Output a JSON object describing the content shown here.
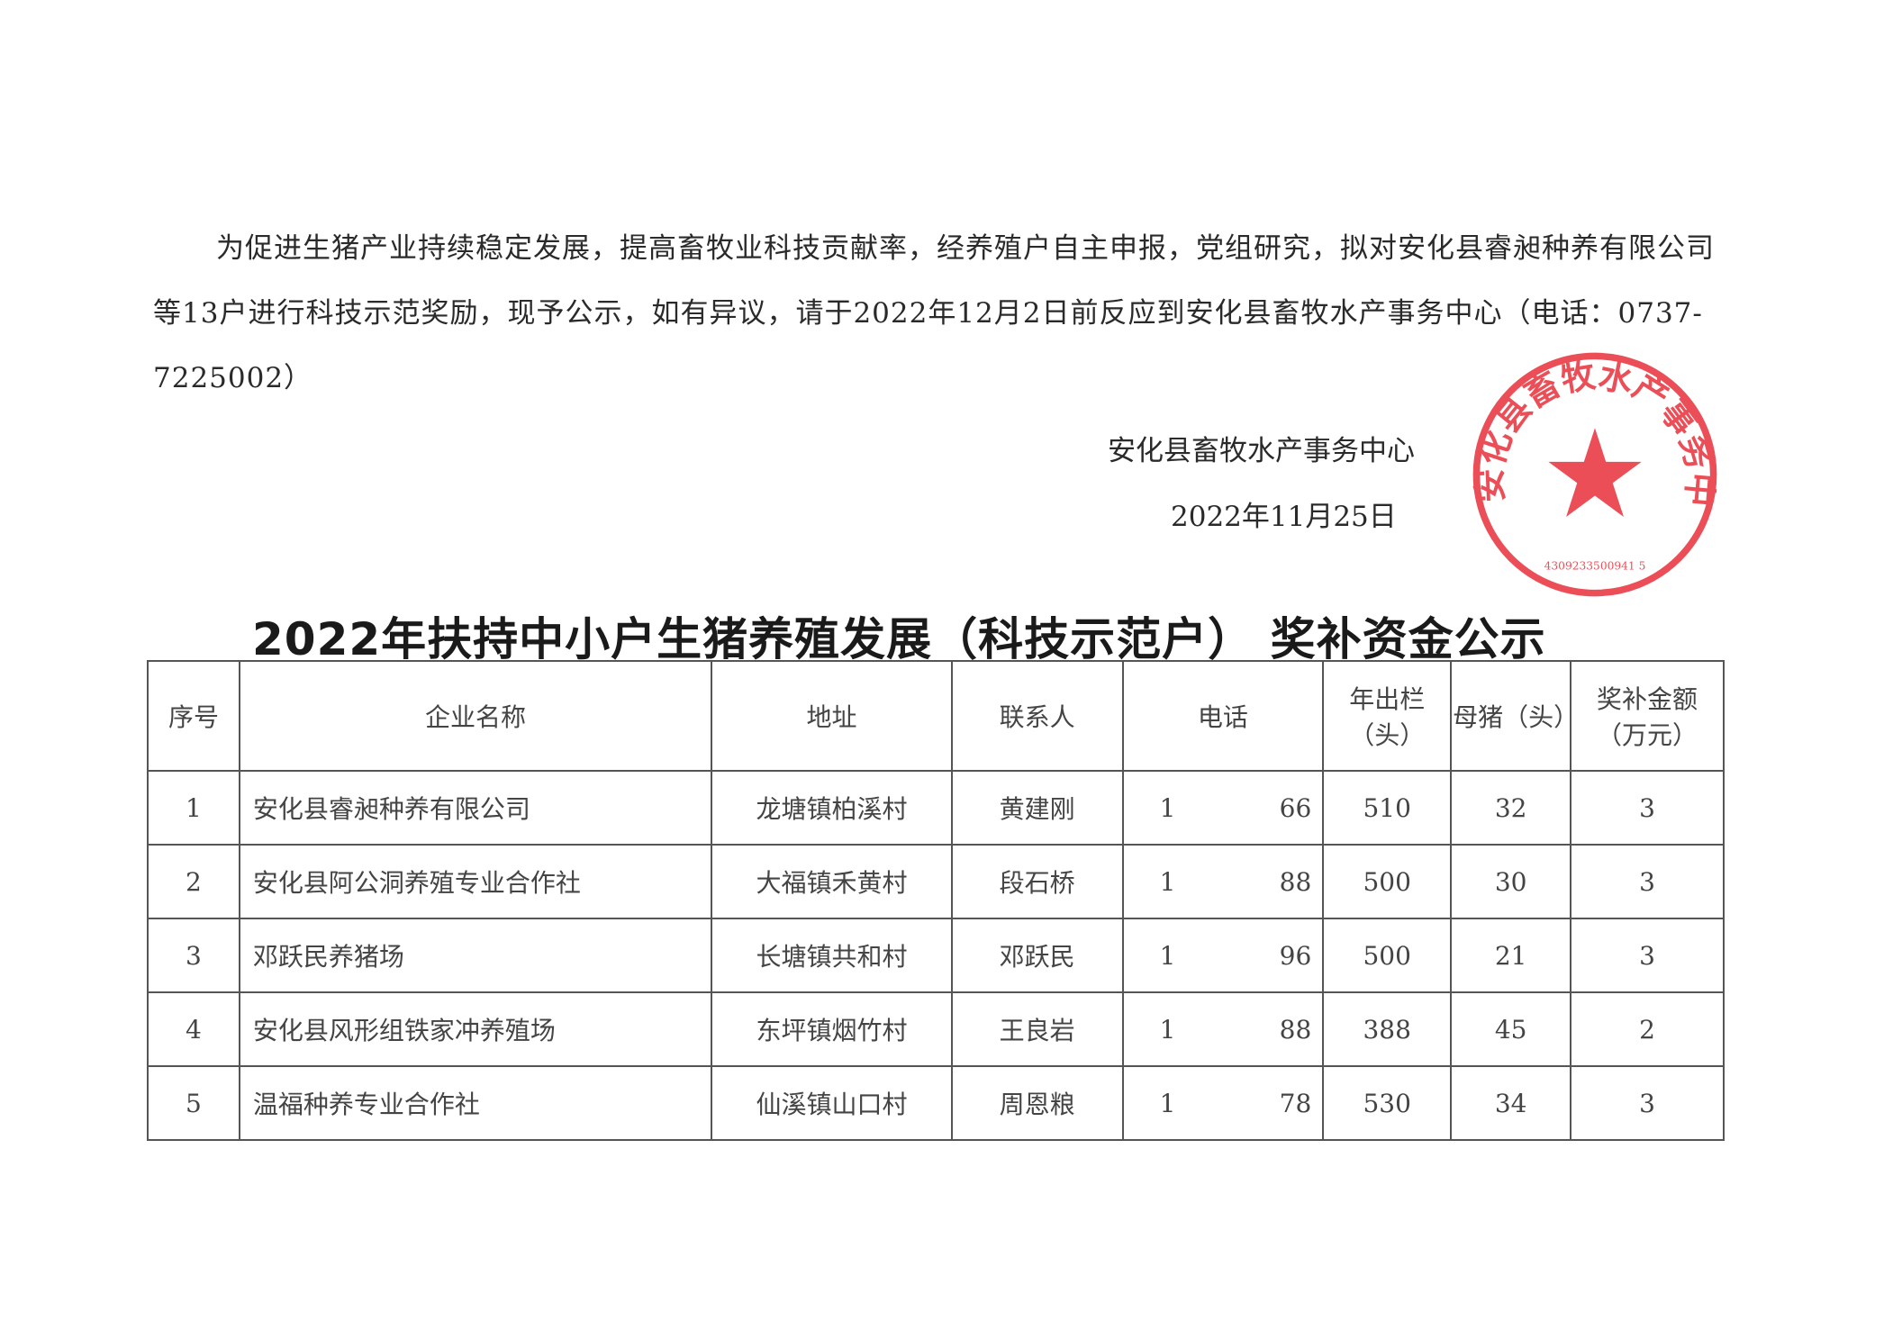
{
  "notice": {
    "paragraph": "为促进生猪产业持续稳定发展，提高畜牧业科技贡献率，经养殖户自主申报，党组研究，拟对安化县睿昶种养有限公司等13户进行科技示范奖励，现予公示，如有异议，请于2022年12月2日前反应到安化县畜牧水产事务中心（电话：0737-7225002）",
    "issuer": "安化县畜牧水产事务中心",
    "date": "2022年11月25日"
  },
  "seal": {
    "text": "安化县畜牧水产事务中心",
    "code": "4309233500941 5",
    "color": "#e8303a"
  },
  "table": {
    "title": "2022年扶持中小户生猪养殖发展（科技示范户） 奖补资金公示",
    "headers": [
      "序号",
      "企业名称",
      "地址",
      "联系人",
      "电话",
      "年出栏（头）",
      "母猪（头）",
      "奖补金额（万元）"
    ],
    "rows": [
      {
        "no": "1",
        "name": "安化县睿昶种养有限公司",
        "addr": "龙塘镇柏溪村",
        "contact": "黄建刚",
        "phone_start": "1",
        "phone_end": "66",
        "output": "510",
        "sows": "32",
        "amount": "3"
      },
      {
        "no": "2",
        "name": "安化县阿公洞养殖专业合作社",
        "addr": "大福镇禾黄村",
        "contact": "段石桥",
        "phone_start": "1",
        "phone_end": "88",
        "output": "500",
        "sows": "30",
        "amount": "3"
      },
      {
        "no": "3",
        "name": "邓跃民养猪场",
        "addr": "长塘镇共和村",
        "contact": "邓跃民",
        "phone_start": "1",
        "phone_end": "96",
        "output": "500",
        "sows": "21",
        "amount": "3"
      },
      {
        "no": "4",
        "name": "安化县风形组铁家冲养殖场",
        "addr": "东坪镇烟竹村",
        "contact": "王良岩",
        "phone_start": "1",
        "phone_end": "88",
        "output": "388",
        "sows": "45",
        "amount": "2"
      },
      {
        "no": "5",
        "name": "温福种养专业合作社",
        "addr": "仙溪镇山口村",
        "contact": "周恩粮",
        "phone_start": "1",
        "phone_end": "78",
        "output": "530",
        "sows": "34",
        "amount": "3"
      }
    ]
  }
}
